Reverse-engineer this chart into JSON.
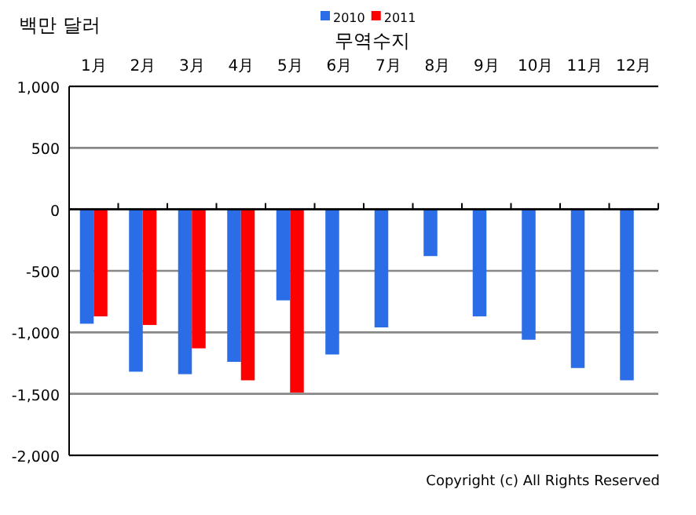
{
  "chart_data": {
    "type": "bar",
    "title": "무역수지",
    "ylabel": "백만 달러",
    "categories": [
      "1月",
      "2月",
      "3月",
      "4月",
      "5月",
      "6月",
      "7月",
      "8月",
      "9月",
      "10月",
      "11月",
      "12月"
    ],
    "series": [
      {
        "name": "2010",
        "color": "#2a6de6",
        "values": [
          -930,
          -1320,
          -1340,
          -1240,
          -740,
          -1180,
          -960,
          -380,
          -870,
          -1060,
          -1290,
          -1390
        ]
      },
      {
        "name": "2011",
        "color": "#ff0000",
        "values": [
          -870,
          -940,
          -1130,
          -1390,
          -1490,
          null,
          null,
          null,
          null,
          null,
          null,
          null
        ]
      }
    ],
    "ylim": [
      -2000,
      1000
    ],
    "yticks": [
      {
        "value": -2000,
        "label": "-2,000"
      },
      {
        "value": -1500,
        "label": "-1,500"
      },
      {
        "value": -1000,
        "label": "-1,000"
      },
      {
        "value": -500,
        "label": "-500"
      },
      0,
      500,
      {
        "value": 1000,
        "label": "1,000"
      }
    ],
    "grid": "y",
    "legend": "top",
    "annotations": [
      "Copyright (c) All Rights Reserved"
    ]
  }
}
